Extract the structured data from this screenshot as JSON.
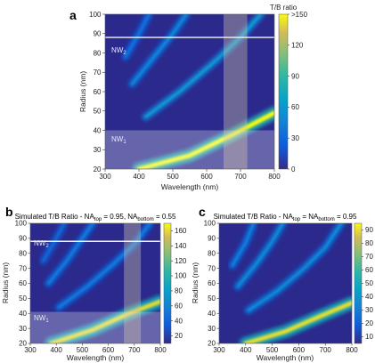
{
  "panels": {
    "a": {
      "label": "a",
      "xlabel": "Wavelength (nm)",
      "ylabel": "Radius (nm)",
      "colorbar_title": "T/B ratio",
      "colorbar_ticks": [
        "0",
        "30",
        "60",
        "90",
        "120",
        ">150"
      ],
      "nw2_label": "NW",
      "nw2_sub": "2",
      "nw1_label": "NW",
      "nw1_sub": "1"
    },
    "b": {
      "label": "b",
      "title_parts": [
        "Simulated T/B Ratio - NA",
        "top",
        " = 0.95, NA",
        "bottom",
        " = 0.55"
      ],
      "xlabel": "Wavelength (nm)",
      "ylabel": "Radius (nm)",
      "colorbar_ticks": [
        "20",
        "40",
        "60",
        "80",
        "100",
        "120",
        "140",
        "160"
      ],
      "nw2_label": "NW",
      "nw2_sub": "2",
      "nw1_label": "NW",
      "nw1_sub": "1"
    },
    "c": {
      "label": "c",
      "title_parts": [
        "Simulated T/B Ratio - NA",
        "top",
        " = NA",
        "bottom",
        " = 0.95"
      ],
      "xlabel": "Wavelength (nm)",
      "ylabel": "Radius (nm)",
      "colorbar_ticks": [
        "10",
        "20",
        "30",
        "40",
        "50",
        "60",
        "70",
        "80",
        "90"
      ]
    }
  },
  "chart_data": [
    {
      "type": "heatmap",
      "panel": "a",
      "xlabel": "Wavelength (nm)",
      "ylabel": "Radius (nm)",
      "xlim": [
        300,
        800
      ],
      "ylim": [
        20,
        100
      ],
      "x_ticks": [
        300,
        400,
        500,
        600,
        700,
        800
      ],
      "y_ticks": [
        20,
        30,
        40,
        50,
        60,
        70,
        80,
        90,
        100
      ],
      "colorbar": {
        "title": "T/B ratio",
        "min": 0,
        "max": 150,
        "ticks": [
          "0",
          "30",
          "60",
          "90",
          "120",
          ">150"
        ]
      },
      "ridges": [
        {
          "points": [
            [
              400,
              20
            ],
            [
              550,
              27
            ],
            [
              680,
              38
            ],
            [
              800,
              49
            ]
          ],
          "peak": 150
        },
        {
          "points": [
            [
              420,
              47
            ],
            [
              520,
              60
            ],
            [
              620,
              75
            ],
            [
              700,
              88
            ],
            [
              760,
              100
            ]
          ],
          "peak": 70
        },
        {
          "points": [
            [
              380,
              64
            ],
            [
              440,
              77
            ],
            [
              500,
              90
            ],
            [
              540,
              100
            ]
          ],
          "peak": 55
        },
        {
          "points": [
            [
              360,
              78
            ],
            [
              400,
              90
            ],
            [
              430,
              100
            ]
          ],
          "peak": 40
        }
      ],
      "highlight_band_nm": [
        650,
        720
      ],
      "nw2_radius": 88,
      "nw1_radius_max": 40,
      "grid": false
    },
    {
      "type": "heatmap",
      "panel": "b",
      "title": "Simulated T/B Ratio - NAtop = 0.95, NAbottom = 0.55",
      "xlabel": "Wavelength (nm)",
      "ylabel": "Radius (nm)",
      "xlim": [
        300,
        800
      ],
      "ylim": [
        20,
        100
      ],
      "x_ticks": [
        300,
        400,
        500,
        600,
        700,
        800
      ],
      "y_ticks": [
        20,
        30,
        40,
        50,
        60,
        70,
        80,
        90,
        100
      ],
      "colorbar": {
        "min": 10,
        "max": 170,
        "ticks": [
          "20",
          "40",
          "60",
          "80",
          "100",
          "120",
          "140",
          "160"
        ]
      },
      "ridges": [
        {
          "points": [
            [
              380,
              20
            ],
            [
              540,
              29
            ],
            [
              680,
              40
            ],
            [
              800,
              48
            ]
          ],
          "peak": 160
        },
        {
          "points": [
            [
              410,
              44
            ],
            [
              520,
              58
            ],
            [
              620,
              73
            ],
            [
              700,
              86
            ],
            [
              760,
              100
            ]
          ],
          "peak": 60
        },
        {
          "points": [
            [
              370,
              60
            ],
            [
              440,
              75
            ],
            [
              500,
              90
            ],
            [
              540,
              100
            ]
          ],
          "peak": 60
        },
        {
          "points": [
            [
              350,
              75
            ],
            [
              400,
              90
            ],
            [
              430,
              100
            ]
          ],
          "peak": 45
        }
      ],
      "highlight_band_nm": [
        660,
        725
      ],
      "nw2_radius": 88,
      "nw1_radius_max": 41,
      "grid": false
    },
    {
      "type": "heatmap",
      "panel": "c",
      "title": "Simulated T/B Ratio - NAtop = NAbottom = 0.95",
      "xlabel": "Wavelength (nm)",
      "ylabel": "Radius (nm)",
      "xlim": [
        300,
        800
      ],
      "ylim": [
        20,
        100
      ],
      "x_ticks": [
        300,
        400,
        500,
        600,
        700,
        800
      ],
      "y_ticks": [
        20,
        30,
        40,
        50,
        60,
        70,
        80,
        90,
        100
      ],
      "colorbar": {
        "min": 5,
        "max": 95,
        "ticks": [
          "10",
          "20",
          "30",
          "40",
          "50",
          "60",
          "70",
          "80",
          "90"
        ]
      },
      "ridges": [
        {
          "points": [
            [
              400,
              20
            ],
            [
              550,
              28
            ],
            [
              680,
              38
            ],
            [
              800,
              47
            ]
          ],
          "peak": 90
        },
        {
          "points": [
            [
              410,
              42
            ],
            [
              520,
              55
            ],
            [
              620,
              70
            ],
            [
              700,
              84
            ],
            [
              760,
              100
            ]
          ],
          "peak": 40
        },
        {
          "points": [
            [
              370,
              58
            ],
            [
              440,
              73
            ],
            [
              500,
              88
            ],
            [
              540,
              100
            ]
          ],
          "peak": 40
        },
        {
          "points": [
            [
              350,
              72
            ],
            [
              400,
              87
            ],
            [
              430,
              100
            ]
          ],
          "peak": 35
        }
      ],
      "grid": false
    }
  ]
}
